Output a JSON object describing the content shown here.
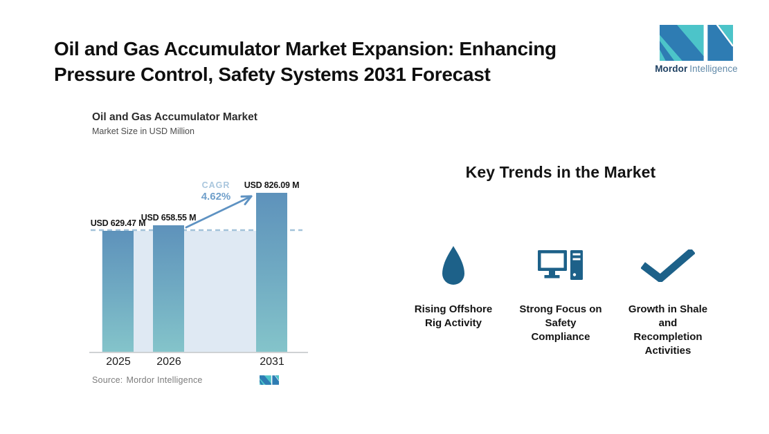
{
  "page": {
    "title": "Oil and Gas Accumulator Market Expansion: Enhancing\nPressure Control, Safety Systems 2031 Forecast"
  },
  "brand": {
    "name_bold": "Mordor",
    "name_light": "Intelligence",
    "colors": {
      "teal": "#4cc4c9",
      "blue": "#2e7cb3",
      "navy_text": "#1d3f61",
      "steel_text": "#6089a8"
    }
  },
  "chart": {
    "title": "Oil and Gas Accumulator Market",
    "subtitle": "Market Size in USD Million",
    "cagr_label": "CAGR",
    "cagr_value": "4.62%",
    "source_prefix": "Source:",
    "source_value": "Mordor Intelligence"
  },
  "chart_data": {
    "type": "bar",
    "title": "Oil and Gas Accumulator Market",
    "ylabel": "Market Size in USD Million",
    "unit": "USD Million",
    "categories": [
      "2025",
      "2026",
      "2031"
    ],
    "values": [
      629.47,
      658.55,
      826.09
    ],
    "value_labels": [
      "USD 629.47 M",
      "USD 658.55 M",
      "USD 826.09 M"
    ],
    "cagr_percent": 4.62,
    "baseline_reference_value": 629.47,
    "ylim": [
      0,
      870
    ],
    "grid": false,
    "legend": false,
    "annotations": [
      "CAGR 4.62% growth arrow from 2026 to 2031",
      "dashed reference line at 2025 level"
    ],
    "colors": {
      "bar_top": "#5e92bb",
      "bar_bottom": "#84c4ca",
      "area_fill": "#dfe9f3",
      "dashed_line": "#a3c3da",
      "arrow": "#5e92c2",
      "cagr_label": "#a9c6dd",
      "cagr_value": "#6f9fca"
    }
  },
  "trends": {
    "heading": "Key Trends in the Market",
    "icon_color": "#1d6189",
    "items": [
      {
        "icon": "water-drop-icon",
        "label": "Rising Offshore\nRig Activity"
      },
      {
        "icon": "desktop-computer-icon",
        "label": "Strong Focus on\nSafety\nCompliance"
      },
      {
        "icon": "checkmark-icon",
        "label": "Growth in Shale\nand\nRecompletion\nActivities"
      }
    ]
  }
}
